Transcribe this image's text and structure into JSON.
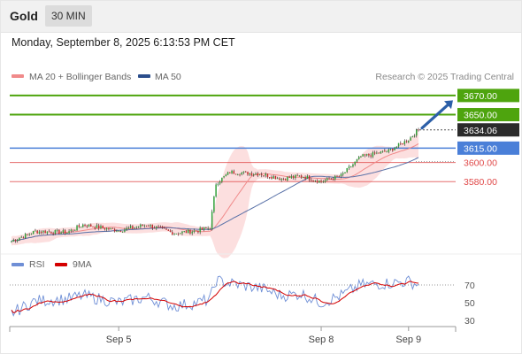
{
  "header": {
    "symbol": "Gold",
    "timeframe": "30 MIN",
    "datetime": "Monday, September 8, 2025 6:13:53 PM CET"
  },
  "legend": {
    "ma20_label": "MA 20 + Bollinger Bands",
    "ma20_color": "#f08a8a",
    "ma50_label": "MA 50",
    "ma50_color": "#2b4e8c",
    "credit": "Research © 2025 Trading Central"
  },
  "rsi_legend": {
    "rsi_label": "RSI",
    "rsi_color": "#6f8fd6",
    "ma_label": "9MA",
    "ma_color": "#d40000"
  },
  "colors": {
    "bull": "#2e9e36",
    "bear": "#c62828",
    "resistance": "#4ea40e",
    "pivot": "#4a7fd8",
    "support": "#e04848",
    "arrow": "#2c5fa8",
    "band_fill": "#fbd4d4"
  },
  "chart_data": [
    {
      "type": "candlestick",
      "x_ticks": [
        "Sep 5",
        "Sep 8",
        "Sep 9"
      ],
      "ylim": [
        3509,
        3681
      ],
      "last_price": 3634.06,
      "price_levels": [
        {
          "label": "3670.00",
          "value": 3670.0,
          "kind": "resistance",
          "boxed": true
        },
        {
          "label": "3650.00",
          "value": 3650.0,
          "kind": "resistance",
          "boxed": true
        },
        {
          "label": "3634.06",
          "value": 3634.06,
          "kind": "last",
          "boxed": true
        },
        {
          "label": "3615.00",
          "value": 3615.0,
          "kind": "pivot",
          "boxed": true
        },
        {
          "label": "3600.00",
          "value": 3600.0,
          "kind": "support",
          "boxed": false
        },
        {
          "label": "3580.00",
          "value": 3580.0,
          "kind": "support",
          "boxed": false
        }
      ],
      "anchors": [
        {
          "t": 0,
          "p": 3518
        },
        {
          "t": 12,
          "p": 3528
        },
        {
          "t": 28,
          "p": 3527
        },
        {
          "t": 36,
          "p": 3535
        },
        {
          "t": 54,
          "p": 3529
        },
        {
          "t": 68,
          "p": 3535
        },
        {
          "t": 82,
          "p": 3526
        },
        {
          "t": 94,
          "p": 3529
        },
        {
          "t": 100,
          "p": 3532
        },
        {
          "t": 103,
          "p": 3578
        },
        {
          "t": 110,
          "p": 3590
        },
        {
          "t": 126,
          "p": 3588
        },
        {
          "t": 136,
          "p": 3583
        },
        {
          "t": 146,
          "p": 3586
        },
        {
          "t": 156,
          "p": 3580
        },
        {
          "t": 166,
          "p": 3586
        },
        {
          "t": 176,
          "p": 3606
        },
        {
          "t": 190,
          "p": 3612
        },
        {
          "t": 200,
          "p": 3624
        },
        {
          "t": 205,
          "p": 3634
        }
      ]
    },
    {
      "type": "line",
      "title": "RSI",
      "y_ticks": [
        70,
        50,
        30
      ],
      "ylim": [
        20,
        80
      ],
      "rsi_anchors": [
        {
          "t": 0,
          "v": 38
        },
        {
          "t": 12,
          "v": 52
        },
        {
          "t": 28,
          "v": 54
        },
        {
          "t": 36,
          "v": 58
        },
        {
          "t": 54,
          "v": 50
        },
        {
          "t": 68,
          "v": 56
        },
        {
          "t": 82,
          "v": 46
        },
        {
          "t": 94,
          "v": 50
        },
        {
          "t": 100,
          "v": 54
        },
        {
          "t": 103,
          "v": 75
        },
        {
          "t": 110,
          "v": 72
        },
        {
          "t": 126,
          "v": 66
        },
        {
          "t": 136,
          "v": 58
        },
        {
          "t": 146,
          "v": 60
        },
        {
          "t": 156,
          "v": 50
        },
        {
          "t": 166,
          "v": 58
        },
        {
          "t": 176,
          "v": 70
        },
        {
          "t": 190,
          "v": 72
        },
        {
          "t": 200,
          "v": 74
        },
        {
          "t": 205,
          "v": 70
        }
      ]
    }
  ]
}
